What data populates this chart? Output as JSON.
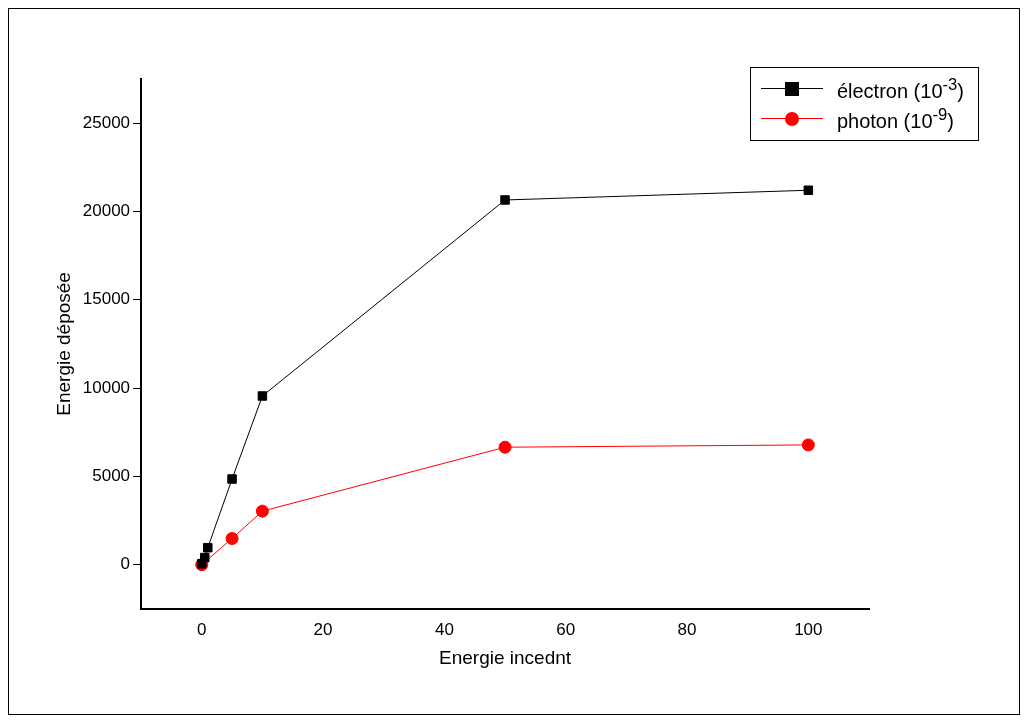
{
  "chart_data": {
    "type": "line",
    "xlabel": "Energie incednt",
    "ylabel": "Energie déposée",
    "x": [
      0,
      0.5,
      1,
      5,
      10,
      50,
      100
    ],
    "series": [
      {
        "name": "électron (10$^{-3}$)",
        "color": "#000000",
        "marker": "square",
        "values": [
          50,
          400,
          960,
          4850,
          9550,
          20650,
          21200
        ]
      },
      {
        "name": "photon (10$^{-9}$)",
        "color": "#ff0000",
        "marker": "circle",
        "values": [
          0,
          null,
          null,
          1480,
          3030,
          6650,
          6780
        ]
      }
    ],
    "xlim": [
      -10,
      110
    ],
    "xticks": [
      0,
      20,
      40,
      60,
      80,
      100
    ],
    "ylim": [
      -2500,
      27500
    ],
    "yticks": [
      0,
      5000,
      10000,
      15000,
      20000,
      25000
    ],
    "grid": false,
    "legend": "top right",
    "line_style": "solid"
  }
}
